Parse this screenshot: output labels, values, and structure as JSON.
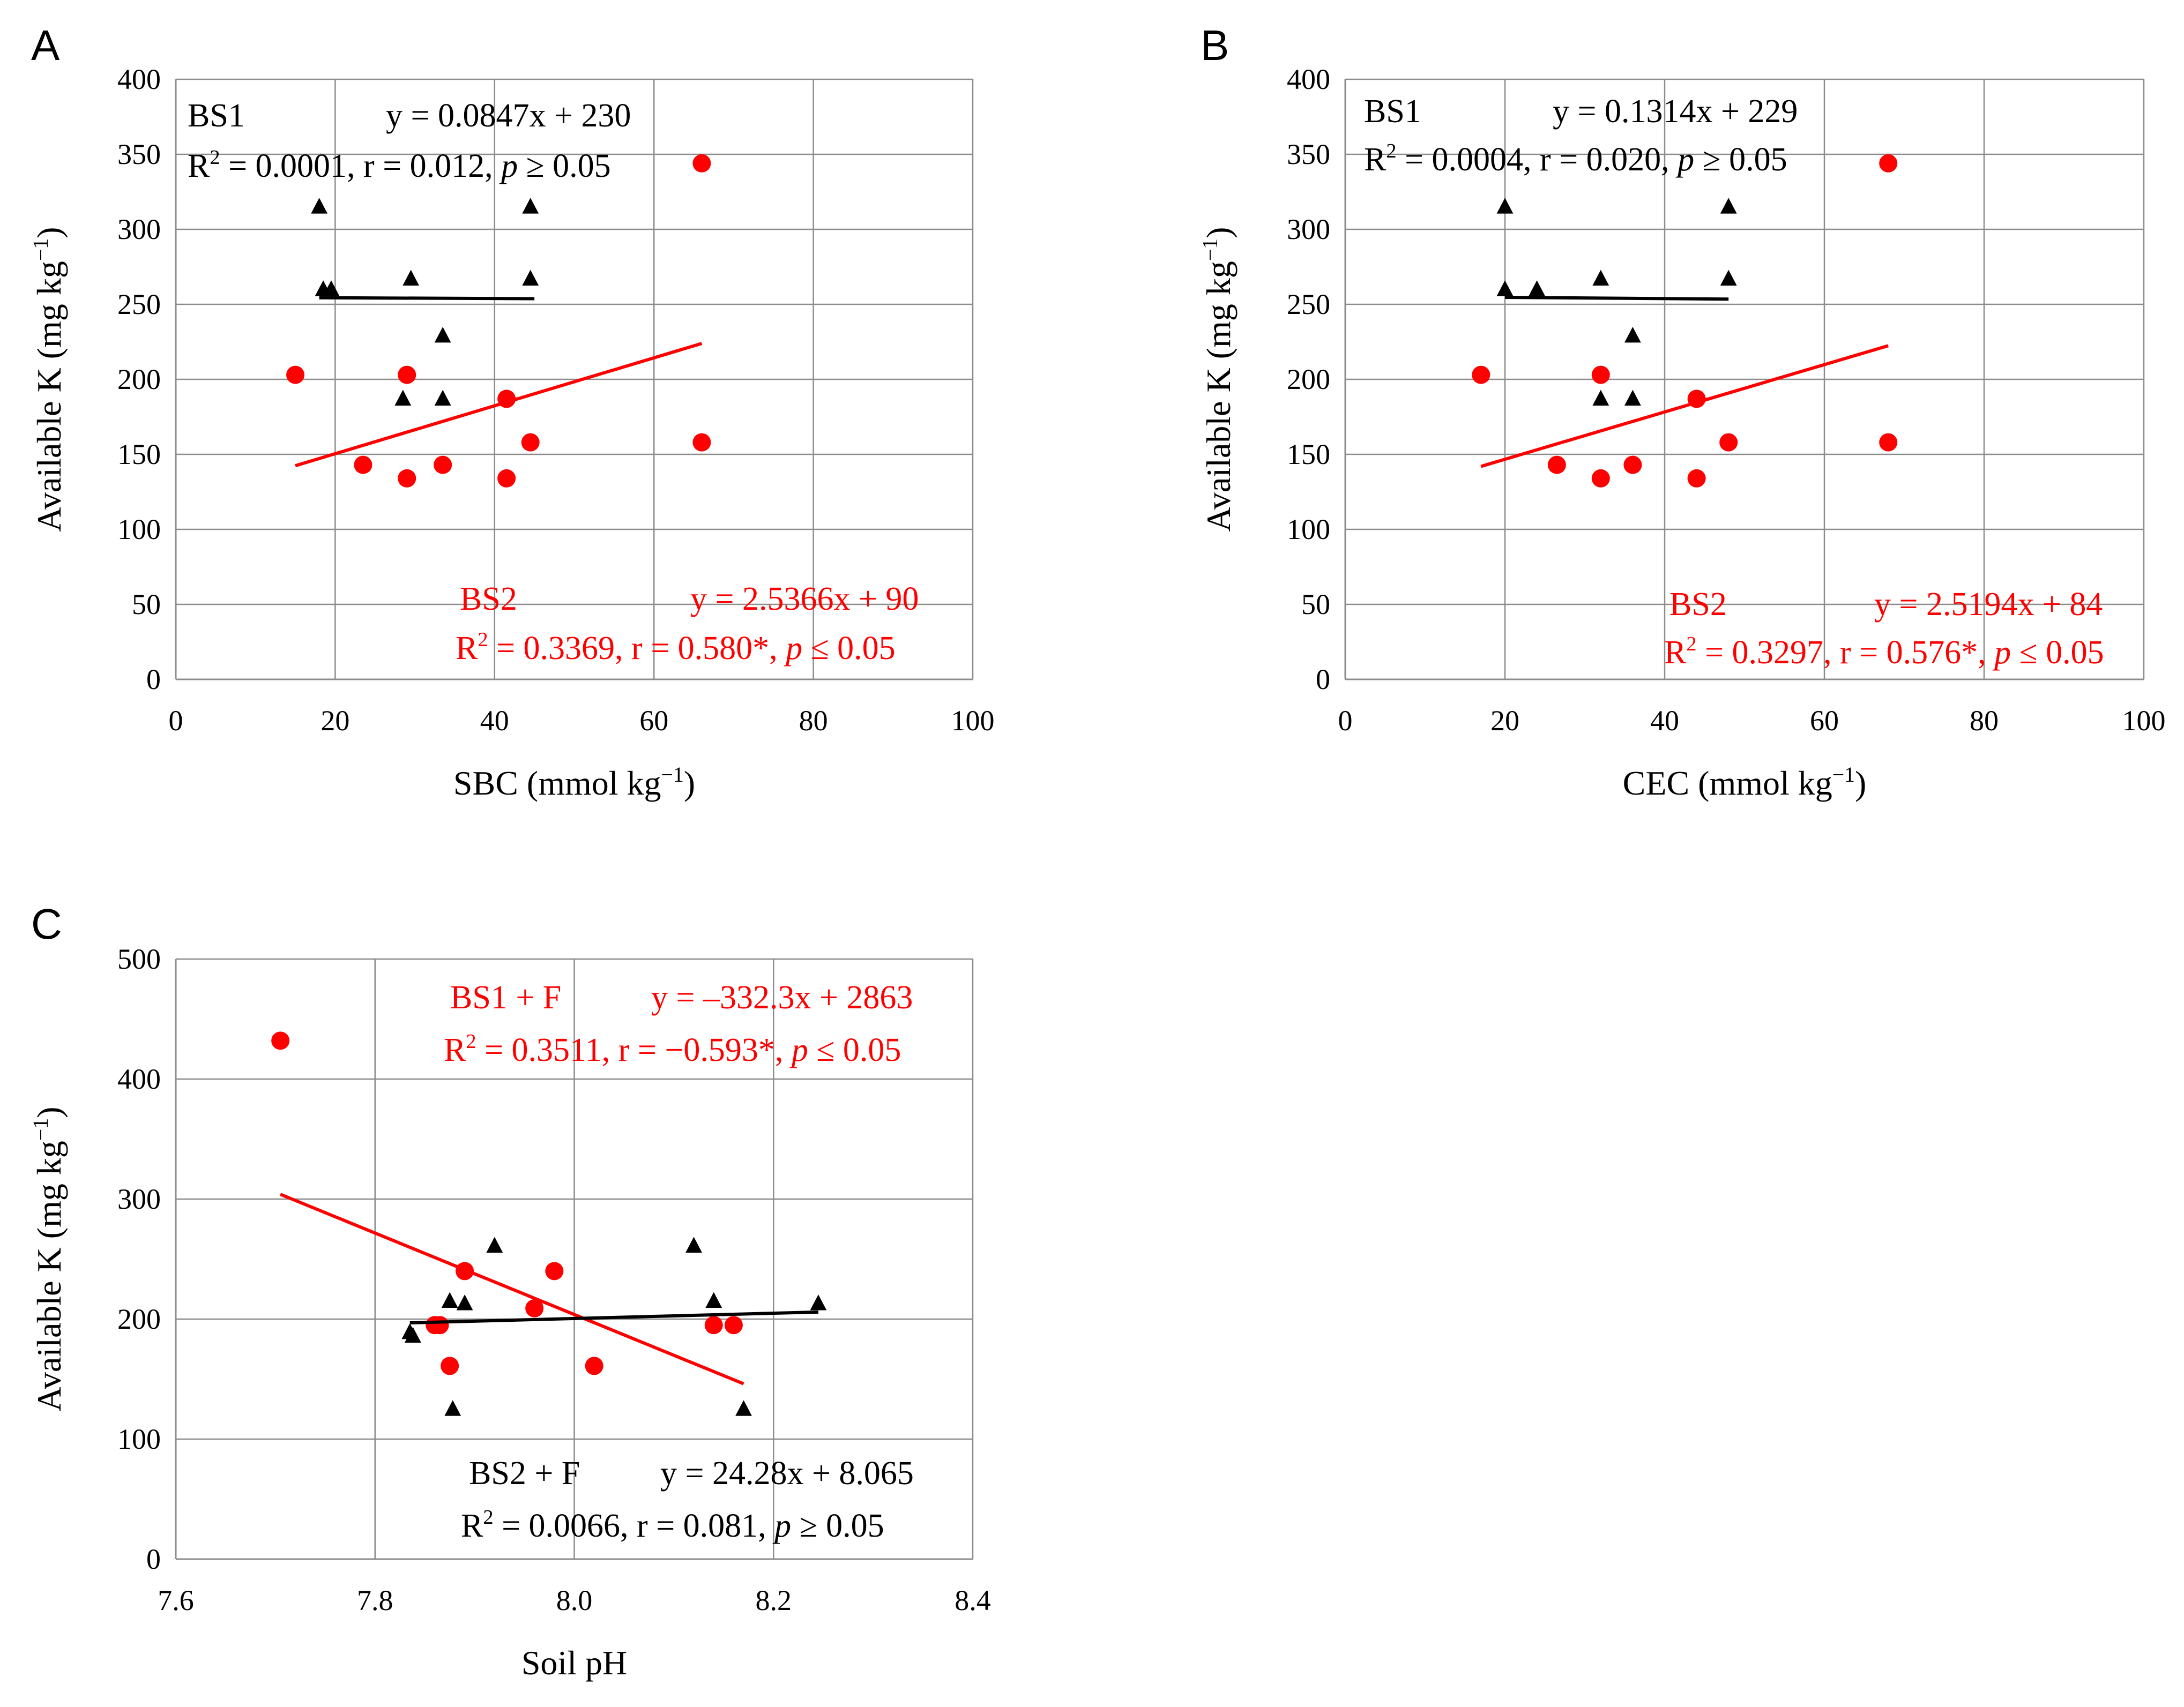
{
  "chart_data": [
    {
      "panel": "A",
      "type": "scatter",
      "xlabel": "SBC (mmol kg−1)",
      "xlabel_main": "SBC (mmol kg",
      "xlabel_sup": "−1",
      "xlabel_end": ")",
      "ylabel_main": "Available K (mg kg",
      "ylabel_sup": "−1",
      "ylabel_end": ")",
      "xlim": [
        0,
        100
      ],
      "ylim": [
        0,
        400
      ],
      "xticks": [
        0,
        20,
        40,
        60,
        80,
        100
      ],
      "yticks": [
        0,
        50,
        100,
        150,
        200,
        250,
        300,
        350,
        400
      ],
      "x_tick_labels": [
        "0",
        "20",
        "40",
        "60",
        "80",
        "100"
      ],
      "y_tick_labels": [
        "0",
        "50",
        "100",
        "150",
        "200",
        "250",
        "300",
        "350",
        "400"
      ],
      "grid": true,
      "series": [
        {
          "name": "BS1",
          "marker": "triangle",
          "color": "#000000",
          "x": [
            18,
            18.5,
            19.5,
            29.5,
            28.5,
            33.5,
            33.5,
            44.5,
            44.5
          ],
          "y": [
            315,
            260,
            260,
            267,
            187,
            187,
            229,
            315,
            267
          ],
          "fit": {
            "x0": 18,
            "x1": 45
          },
          "label": "BS1",
          "equation": "y = 0.0847x + 230",
          "r2_text": "R",
          "stats_parts": [
            "R",
            "2",
            " = 0.0001, r = 0.012, ",
            "p",
            " ≥ 0.05"
          ]
        },
        {
          "name": "BS2",
          "marker": "circle",
          "color": "#ff0000",
          "x": [
            15,
            23.5,
            29,
            29,
            33.5,
            41.5,
            41.5,
            44.5,
            66,
            66
          ],
          "y": [
            203,
            143,
            203,
            134,
            143,
            187,
            134,
            158,
            344,
            158
          ],
          "fit": {
            "x0": 15,
            "x1": 66
          },
          "label": "BS2",
          "equation": "y = 2.5366x + 90",
          "stats_parts": [
            "R",
            "2",
            " = 0.3369, r = 0.580*, ",
            "p",
            " ≤ 0.05"
          ]
        }
      ]
    },
    {
      "panel": "B",
      "type": "scatter",
      "xlabel": "CEC (mmol kg−1)",
      "xlabel_main": "CEC (mmol kg",
      "xlabel_sup": "−1",
      "xlabel_end": ")",
      "ylabel_main": "Available K (mg kg",
      "ylabel_sup": "−1",
      "ylabel_end": ")",
      "xlim": [
        0,
        100
      ],
      "ylim": [
        0,
        400
      ],
      "xticks": [
        0,
        20,
        40,
        60,
        80,
        100
      ],
      "yticks": [
        0,
        50,
        100,
        150,
        200,
        250,
        300,
        350,
        400
      ],
      "x_tick_labels": [
        "0",
        "20",
        "40",
        "60",
        "80",
        "100"
      ],
      "y_tick_labels": [
        "0",
        "50",
        "100",
        "150",
        "200",
        "250",
        "300",
        "350",
        "400"
      ],
      "grid": true,
      "series": [
        {
          "name": "BS1",
          "marker": "triangle",
          "color": "#000000",
          "x": [
            20,
            20,
            24,
            32,
            32,
            36,
            36,
            48,
            48
          ],
          "y": [
            315,
            260,
            260,
            267,
            187,
            187,
            229,
            315,
            267
          ],
          "fit": {
            "x0": 20,
            "x1": 48
          },
          "label": "BS1",
          "equation": "y = 0.1314x + 229",
          "stats_parts": [
            "R",
            "2",
            " = 0.0004, r = 0.020, ",
            "p",
            " ≥ 0.05"
          ]
        },
        {
          "name": "BS2",
          "marker": "circle",
          "color": "#ff0000",
          "x": [
            17,
            26.5,
            32,
            32,
            36,
            44,
            44,
            48,
            68,
            68
          ],
          "y": [
            203,
            143,
            203,
            134,
            143,
            187,
            134,
            158,
            344,
            158
          ],
          "fit": {
            "x0": 17,
            "x1": 68
          },
          "label": "BS2",
          "equation": "y = 2.5194x + 84",
          "stats_parts": [
            "R",
            "2",
            " = 0.3297, r = 0.576*, ",
            "p",
            " ≤ 0.05"
          ]
        }
      ]
    },
    {
      "panel": "C",
      "type": "scatter",
      "xlabel": "Soil pH",
      "xlabel_main": "Soil pH",
      "xlabel_sup": "",
      "xlabel_end": "",
      "ylabel_main": "Available K (mg kg",
      "ylabel_sup": "−1",
      "ylabel_end": ")",
      "xlim": [
        7.6,
        8.4
      ],
      "ylim": [
        0,
        500
      ],
      "xticks": [
        7.6,
        7.8,
        8.0,
        8.2,
        8.4
      ],
      "yticks": [
        0,
        100,
        200,
        300,
        400,
        500
      ],
      "x_tick_labels": [
        "7.6",
        "7.8",
        "8.0",
        "8.2",
        "8.4"
      ],
      "y_tick_labels": [
        "0",
        "100",
        "200",
        "300",
        "400",
        "500"
      ],
      "grid": true,
      "series": [
        {
          "name": "BS1 + F",
          "marker": "circle",
          "color": "#ff0000",
          "x": [
            7.705,
            7.86,
            7.865,
            7.875,
            7.89,
            7.96,
            7.98,
            8.02,
            8.14,
            8.16
          ],
          "y": [
            432,
            195,
            195,
            161,
            240,
            209,
            240,
            161,
            195,
            195
          ],
          "fit": {
            "x0": 7.705,
            "x1": 8.17
          },
          "label": "BS1 + F",
          "equation": "y = –332.3x + 2863",
          "stats_parts": [
            "R",
            "2",
            " = 0.3511, r = −0.593*, ",
            "p",
            " ≤ 0.05"
          ]
        },
        {
          "name": "BS2 + F",
          "marker": "triangle",
          "color": "#000000",
          "x": [
            7.835,
            7.838,
            7.875,
            7.89,
            7.92,
            8.12,
            8.14,
            8.17,
            8.245,
            7.878
          ],
          "y": [
            189,
            186,
            215,
            213,
            261,
            261,
            215,
            125,
            213,
            125
          ],
          "fit": {
            "x0": 7.835,
            "x1": 8.245
          },
          "label": "BS2 + F",
          "equation": "y = 24.28x + 8.065",
          "stats_parts": [
            "R",
            "2",
            " = 0.0066, r = 0.081,  ",
            "p",
            " ≥ 0.05"
          ]
        }
      ]
    }
  ],
  "panel_labels": [
    "A",
    "B",
    "C"
  ]
}
